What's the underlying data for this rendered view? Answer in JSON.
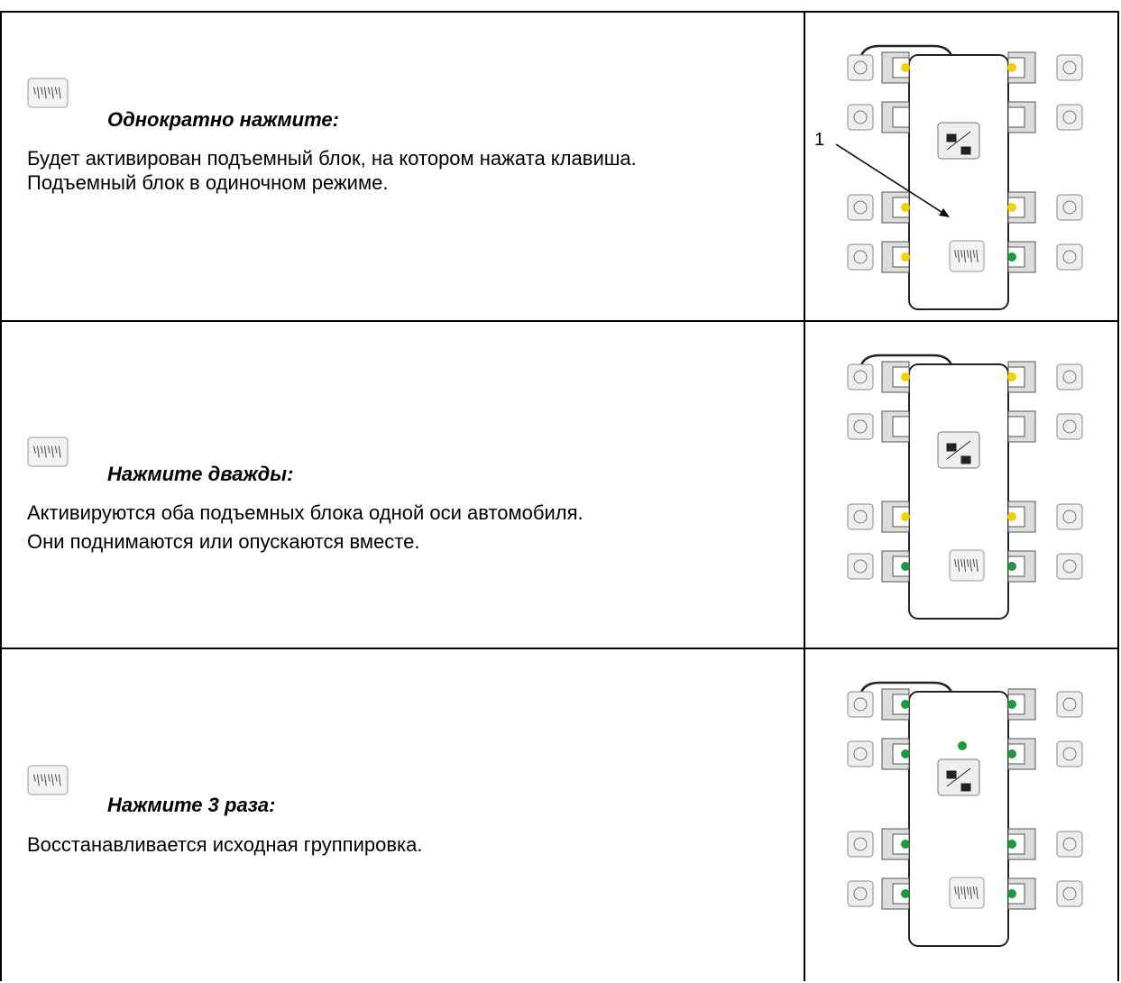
{
  "rows": [
    {
      "heading": "Однократно нажмите:",
      "paragraphs": [
        "Будет активирован подъемный блок, на котором нажата клавиша.",
        "Подъемный блок в одиночном режиме."
      ],
      "callout": "1"
    },
    {
      "heading": "Нажмите дважды:",
      "paragraphs": [
        "Активируются оба подъемных блока одной оси автомобиля.",
        "Они поднимаются или опускаются вместе."
      ]
    },
    {
      "heading": "Нажмите 3 раза:",
      "paragraphs": [
        "Восстанавливается исходная группировка."
      ]
    }
  ]
}
